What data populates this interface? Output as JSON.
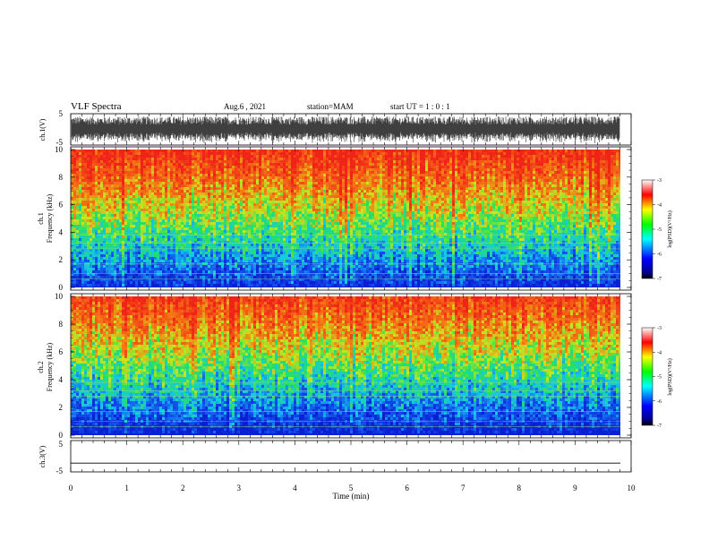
{
  "header": {
    "title": "VLF Spectra",
    "date": "Aug.6 , 2021",
    "station": "station=MAM",
    "start_ut": "start UT = 1 : 0 : 1"
  },
  "chart_data": [
    {
      "type": "line",
      "panel": "ch.1 waveform",
      "ylabel": "ch.1(V)",
      "ylim": [
        -5,
        5
      ],
      "yticks": [
        "5",
        "-5"
      ],
      "x_unit": "min",
      "x_range_data": [
        0,
        9.8
      ],
      "description_values": {
        "typical_amplitude_V": [
          -3.5,
          3.5
        ]
      }
    },
    {
      "type": "heatmap",
      "panel": "ch.1 spectrogram",
      "ylabel": "ch.1\nFrequency (kHz)",
      "ylim": [
        0,
        10
      ],
      "yticks": [
        "0",
        "2",
        "4",
        "6",
        "8",
        "10"
      ],
      "x_range_data": [
        0,
        9.8
      ],
      "colorbar": {
        "label": "log(PSD)(V²/Hz)",
        "range": [
          -7,
          -3
        ],
        "ticks": [
          "-3",
          "-4",
          "-5",
          "-6",
          "-7"
        ]
      }
    },
    {
      "type": "heatmap",
      "panel": "ch.2 spectrogram",
      "ylabel": "ch.2\nFrequency (kHz)",
      "ylim": [
        0,
        10
      ],
      "yticks": [
        "0",
        "2",
        "4",
        "6",
        "8",
        "10"
      ],
      "x_range_data": [
        0,
        9.8
      ],
      "colorbar": {
        "label": "log(PSD)(V²/Hz)",
        "range": [
          -7,
          -3
        ],
        "ticks": [
          "-3",
          "-4",
          "-5",
          "-6",
          "-7"
        ]
      }
    },
    {
      "type": "line",
      "panel": "ch.3 waveform",
      "ylabel": "ch.3(V)",
      "ylim": [
        -5,
        5
      ],
      "yticks": [
        "5",
        "-5"
      ],
      "x_range_data": [
        0,
        9.8
      ],
      "values_constant_V": -2.2
    }
  ],
  "xaxis": {
    "label": "Time (min)",
    "ticks": [
      "0",
      "1",
      "2",
      "3",
      "4",
      "5",
      "6",
      "7",
      "8",
      "9",
      "10"
    ],
    "range": [
      0,
      10
    ]
  }
}
